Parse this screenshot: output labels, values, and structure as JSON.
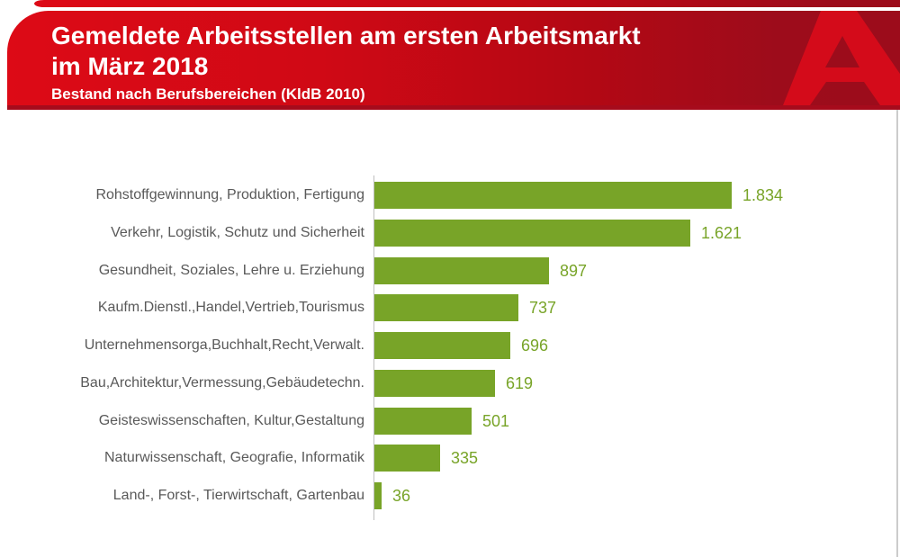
{
  "header": {
    "title_line1": "Gemeldete Arbeitsstellen am ersten Arbeitsmarkt",
    "title_line2": "im März 2018",
    "subtitle": "Bestand nach Berufsbereichen (KldB 2010)",
    "logo_name": "arbeitsagentur-a-logo",
    "colors": {
      "red_bright": "#dd0a16",
      "red_dark": "#9c0c1b",
      "underline_red": "#a60b1c",
      "logo_a_red": "#d40b1a",
      "logo_counter_red": "#9c0c1b",
      "text_white": "#ffffff"
    }
  },
  "chart_data": {
    "type": "bar",
    "orientation": "horizontal",
    "title": "Gemeldete Arbeitsstellen am ersten Arbeitsmarkt im März 2018",
    "subtitle": "Bestand nach Berufsbereichen (KldB 2010)",
    "categories": [
      "Rohstoffgewinnung, Produktion, Fertigung",
      "Verkehr, Logistik, Schutz und Sicherheit",
      "Gesundheit, Soziales, Lehre u. Erziehung",
      "Kaufm.Dienstl.,Handel,Vertrieb,Tourismus",
      "Unternehmensorga,Buchhalt,Recht,Verwalt.",
      "Bau,Architektur,Vermessung,Gebäudetechn.",
      "Geisteswissenschaften, Kultur,Gestaltung",
      "Naturwissenschaft, Geografie, Informatik",
      "Land-, Forst-, Tierwirtschaft, Gartenbau"
    ],
    "values": [
      1834,
      1621,
      897,
      737,
      696,
      619,
      501,
      335,
      36
    ],
    "value_labels": [
      "1.834",
      "1.621",
      "897",
      "737",
      "696",
      "619",
      "501",
      "335",
      "36"
    ],
    "xlabel": "",
    "ylabel": "",
    "xlim": [
      0,
      2000
    ],
    "grid": false,
    "legend": null,
    "bar_color": "#78a428",
    "value_label_color": "#78a428",
    "category_label_color": "#595959",
    "axis_color": "#bfbfbf"
  }
}
